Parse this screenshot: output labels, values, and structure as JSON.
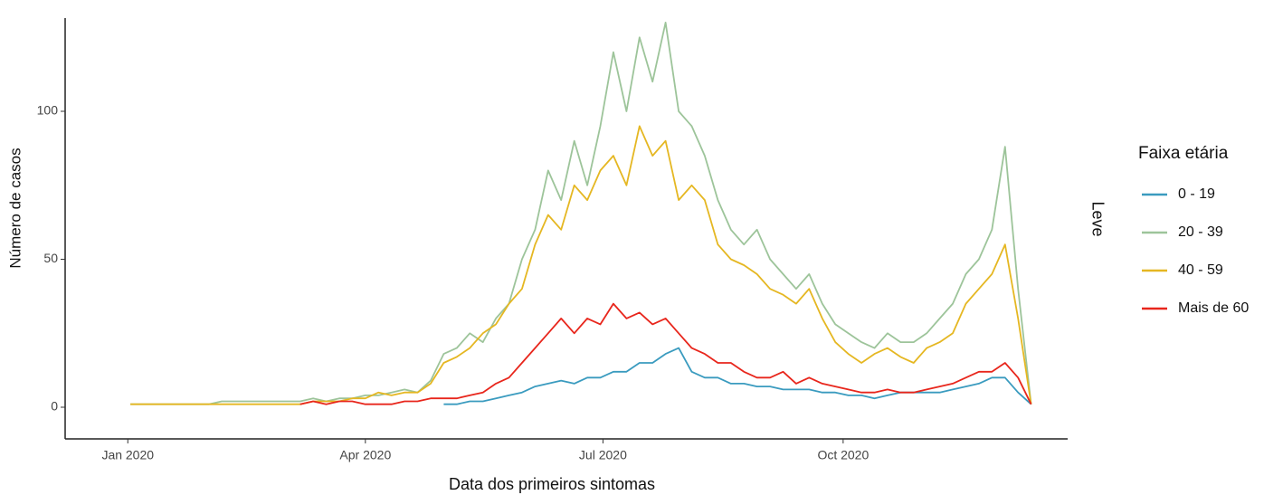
{
  "chart_data": {
    "type": "line",
    "y_label": "Número de casos",
    "x_label": "Data dos primeiros sintomas",
    "facet_label": "Leve",
    "legend_title": "Faixa etária",
    "legend_position": "right",
    "x": [
      "2020-01-02",
      "2020-01-07",
      "2020-01-12",
      "2020-01-17",
      "2020-01-22",
      "2020-01-27",
      "2020-02-01",
      "2020-02-06",
      "2020-02-11",
      "2020-02-16",
      "2020-02-21",
      "2020-02-26",
      "2020-03-02",
      "2020-03-07",
      "2020-03-12",
      "2020-03-17",
      "2020-03-22",
      "2020-03-27",
      "2020-04-01",
      "2020-04-06",
      "2020-04-11",
      "2020-04-16",
      "2020-04-21",
      "2020-04-26",
      "2020-05-01",
      "2020-05-06",
      "2020-05-11",
      "2020-05-16",
      "2020-05-21",
      "2020-05-26",
      "2020-05-31",
      "2020-06-05",
      "2020-06-10",
      "2020-06-15",
      "2020-06-20",
      "2020-06-25",
      "2020-06-30",
      "2020-07-05",
      "2020-07-10",
      "2020-07-15",
      "2020-07-20",
      "2020-07-25",
      "2020-07-30",
      "2020-08-04",
      "2020-08-09",
      "2020-08-14",
      "2020-08-19",
      "2020-08-24",
      "2020-08-29",
      "2020-09-03",
      "2020-09-08",
      "2020-09-13",
      "2020-09-18",
      "2020-09-23",
      "2020-09-28",
      "2020-10-03",
      "2020-10-08",
      "2020-10-13",
      "2020-10-18",
      "2020-10-23",
      "2020-10-28",
      "2020-11-02",
      "2020-11-07",
      "2020-11-12",
      "2020-11-17",
      "2020-11-22",
      "2020-11-27",
      "2020-12-02",
      "2020-12-07",
      "2020-12-12"
    ],
    "series": [
      {
        "name": "0 - 19",
        "color": "#3a9bbf",
        "values": [
          null,
          null,
          null,
          null,
          null,
          null,
          null,
          null,
          null,
          null,
          null,
          null,
          null,
          null,
          null,
          null,
          null,
          null,
          null,
          null,
          null,
          null,
          null,
          null,
          1,
          1,
          2,
          2,
          3,
          4,
          5,
          7,
          8,
          9,
          8,
          10,
          10,
          12,
          12,
          15,
          15,
          18,
          20,
          12,
          10,
          10,
          8,
          8,
          7,
          7,
          6,
          6,
          6,
          5,
          5,
          4,
          4,
          3,
          4,
          5,
          5,
          5,
          5,
          6,
          7,
          8,
          10,
          10,
          5,
          1
        ]
      },
      {
        "name": "20 - 39",
        "color": "#9dc49a",
        "values": [
          1,
          1,
          1,
          1,
          1,
          1,
          1,
          2,
          2,
          2,
          2,
          2,
          2,
          2,
          3,
          2,
          3,
          3,
          4,
          4,
          5,
          6,
          5,
          9,
          18,
          20,
          25,
          22,
          30,
          35,
          50,
          60,
          80,
          70,
          90,
          75,
          95,
          120,
          100,
          125,
          110,
          130,
          100,
          95,
          85,
          70,
          60,
          55,
          60,
          50,
          45,
          40,
          45,
          35,
          28,
          25,
          22,
          20,
          25,
          22,
          22,
          25,
          30,
          35,
          45,
          50,
          60,
          88,
          40,
          1
        ]
      },
      {
        "name": "40 - 59",
        "color": "#e5b722",
        "values": [
          1,
          1,
          1,
          1,
          1,
          1,
          1,
          1,
          1,
          1,
          1,
          1,
          1,
          1,
          2,
          2,
          2,
          3,
          3,
          5,
          4,
          5,
          5,
          8,
          15,
          17,
          20,
          25,
          28,
          35,
          40,
          55,
          65,
          60,
          75,
          70,
          80,
          85,
          75,
          95,
          85,
          90,
          70,
          75,
          70,
          55,
          50,
          48,
          45,
          40,
          38,
          35,
          40,
          30,
          22,
          18,
          15,
          18,
          20,
          17,
          15,
          20,
          22,
          25,
          35,
          40,
          45,
          55,
          30,
          1
        ]
      },
      {
        "name": "Mais de 60",
        "color": "#e8261c",
        "values": [
          null,
          null,
          null,
          null,
          null,
          null,
          null,
          null,
          null,
          null,
          null,
          null,
          null,
          1,
          2,
          1,
          2,
          2,
          1,
          1,
          1,
          2,
          2,
          3,
          3,
          3,
          4,
          5,
          8,
          10,
          15,
          20,
          25,
          30,
          25,
          30,
          28,
          35,
          30,
          32,
          28,
          30,
          25,
          20,
          18,
          15,
          15,
          12,
          10,
          10,
          12,
          8,
          10,
          8,
          7,
          6,
          5,
          5,
          6,
          5,
          5,
          6,
          7,
          8,
          10,
          12,
          12,
          15,
          10,
          1
        ]
      }
    ],
    "xlim": [
      "2019-12-08",
      "2020-12-26"
    ],
    "xticks": [
      {
        "value": "2020-01-01",
        "label": "Jan 2020"
      },
      {
        "value": "2020-04-01",
        "label": "Apr 2020"
      },
      {
        "value": "2020-07-01",
        "label": "Jul 2020"
      },
      {
        "value": "2020-10-01",
        "label": "Oct 2020"
      }
    ],
    "ylim": [
      -10.7,
      131.5
    ],
    "yticks": [
      0,
      50,
      100
    ],
    "grid": false
  }
}
